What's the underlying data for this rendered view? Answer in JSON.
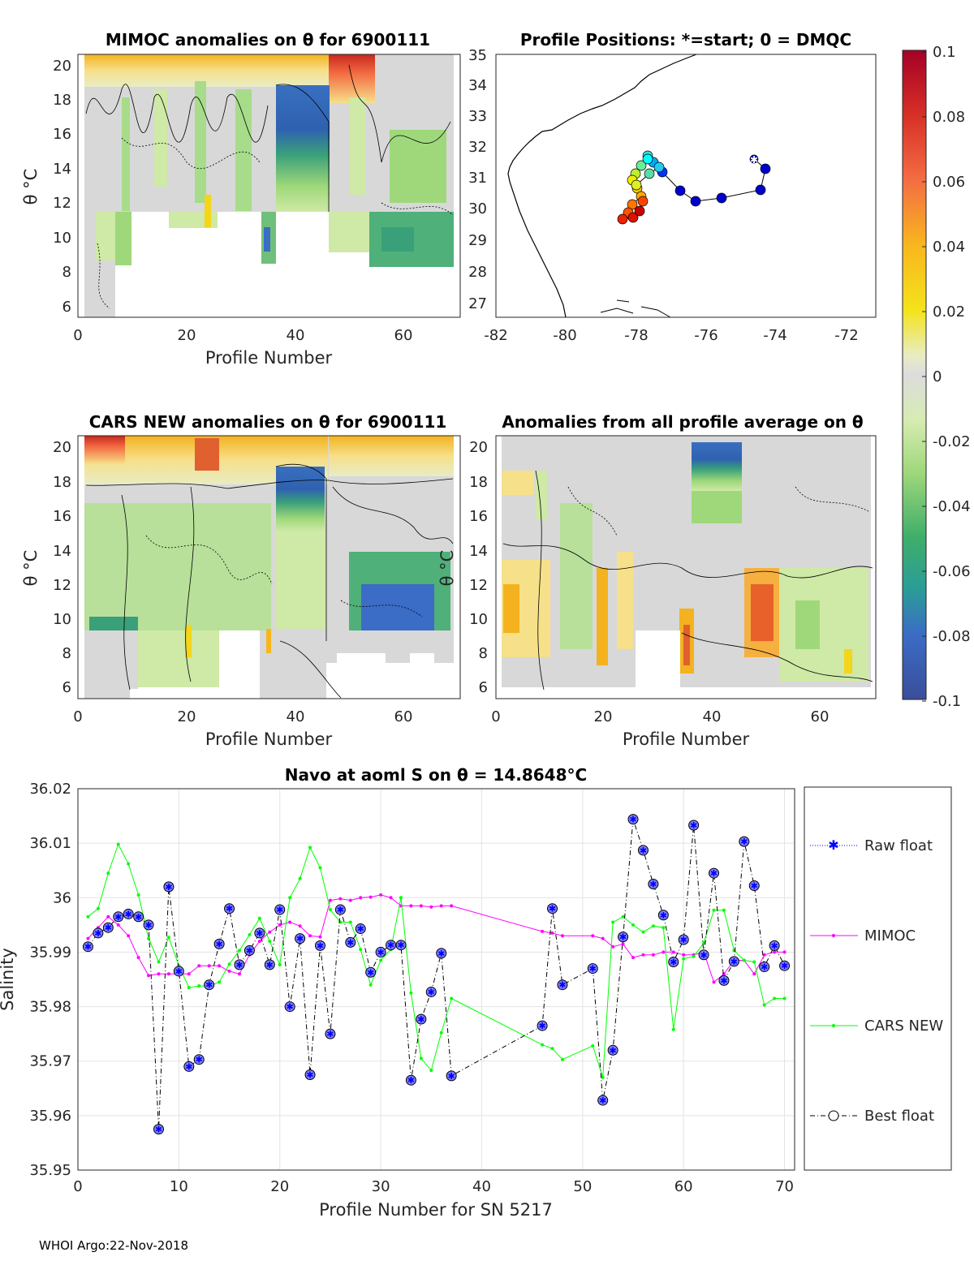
{
  "footer": "WHOI Argo:22-Nov-2018",
  "colors": {
    "raw": "#0000ff",
    "mimoc": "#ff00ff",
    "cars": "#00ff00",
    "best": "#000000",
    "marker_fill": "#8080ff"
  },
  "colorbar": {
    "ticks": [
      "0.1",
      "0.08",
      "0.06",
      "0.04",
      "0.02",
      "0",
      "-0.02",
      "-0.04",
      "-0.06",
      "-0.08",
      "-0.1"
    ],
    "range": [
      -0.1,
      0.1
    ]
  },
  "panels": {
    "mimoc": {
      "title": "MIMOC anomalies on θ  for 6900111",
      "xlabel": "Profile Number",
      "ylabel": "θ °C",
      "xticks": [
        "0",
        "20",
        "40",
        "60"
      ],
      "yticks": [
        "20",
        "18",
        "16",
        "14",
        "12",
        "10",
        "8",
        "6"
      ]
    },
    "map": {
      "title": "Profile Positions: *=start; 0 = DMQC",
      "xticks": [
        "-82",
        "-80",
        "-78",
        "-76",
        "-74",
        "-72"
      ],
      "yticks": [
        "35",
        "34",
        "33",
        "32",
        "31",
        "30",
        "29",
        "28",
        "27"
      ]
    },
    "cars": {
      "title": "CARS NEW anomalies on θ for 6900111",
      "xlabel": "Profile Number",
      "ylabel": "θ °C",
      "xticks": [
        "0",
        "20",
        "40",
        "60"
      ],
      "yticks": [
        "20",
        "18",
        "16",
        "14",
        "12",
        "10",
        "8",
        "6"
      ]
    },
    "avg": {
      "title": "Anomalies from all profile average on θ",
      "xlabel": "Profile Number",
      "ylabel": "θ °C",
      "xticks": [
        "0",
        "20",
        "40",
        "60"
      ],
      "yticks": [
        "20",
        "18",
        "16",
        "14",
        "12",
        "10",
        "8",
        "6"
      ]
    }
  },
  "chart_data": {
    "type": "line",
    "title": "Navo at aoml S on θ = 14.8648°C",
    "xlabel": "Profile Number for SN 5217",
    "ylabel": "Salinity",
    "xlim": [
      0,
      71
    ],
    "ylim": [
      35.95,
      36.02
    ],
    "xticks": [
      "0",
      "10",
      "20",
      "30",
      "40",
      "50",
      "60",
      "70"
    ],
    "yticks": [
      "36.02",
      "36.01",
      "36",
      "35.99",
      "35.98",
      "35.97",
      "35.96",
      "35.95"
    ],
    "legend": [
      "Raw float",
      "MIMOC",
      "CARS NEW",
      "Best float"
    ],
    "series": [
      {
        "name": "Best float",
        "x": [
          1,
          2,
          3,
          4,
          5,
          6,
          7,
          8,
          9,
          10,
          11,
          12,
          13,
          14,
          15,
          16,
          17,
          18,
          19,
          20,
          21,
          22,
          23,
          24,
          25,
          26,
          27,
          28,
          29,
          30,
          31,
          32,
          33,
          34,
          35,
          36,
          37,
          46,
          47,
          48,
          51,
          52,
          53,
          54,
          55,
          56,
          57,
          58,
          59,
          60,
          61,
          62,
          63,
          64,
          65,
          66,
          67,
          68,
          69,
          70
        ],
        "y": [
          35.991,
          35.9935,
          35.9945,
          35.9965,
          35.997,
          35.9965,
          35.995,
          35.9575,
          36.002,
          35.9865,
          35.969,
          35.9703,
          35.984,
          35.9915,
          35.998,
          35.9877,
          35.9903,
          35.9935,
          35.9877,
          35.9978,
          35.98,
          35.9925,
          35.9675,
          35.9912,
          35.975,
          35.9978,
          35.9918,
          35.9943,
          35.9863,
          35.99,
          35.9913,
          35.9913,
          35.9665,
          35.9777,
          35.9827,
          35.9898,
          35.9673,
          35.9765,
          35.998,
          35.984,
          35.987,
          35.9628,
          35.972,
          35.9928,
          36.0144,
          36.0087,
          36.0025,
          35.9968,
          35.9882,
          35.9923,
          36.0133,
          35.9895,
          36.0045,
          35.9848,
          35.9883,
          36.0103,
          36.0022,
          35.9873,
          35.9912,
          35.9875
        ]
      },
      {
        "name": "MIMOC",
        "x": [
          1,
          2,
          3,
          4,
          5,
          6,
          7,
          8,
          9,
          10,
          11,
          12,
          13,
          14,
          15,
          16,
          17,
          18,
          19,
          20,
          21,
          22,
          23,
          24,
          25,
          26,
          27,
          28,
          29,
          30,
          31,
          32,
          33,
          34,
          35,
          36,
          37,
          46,
          47,
          48,
          51,
          52,
          53,
          54,
          55,
          56,
          57,
          58,
          59,
          60,
          61,
          62,
          63,
          64,
          65,
          66,
          67,
          68,
          69,
          70
        ],
        "y": [
          35.9925,
          35.9945,
          35.9965,
          35.995,
          35.993,
          35.989,
          35.9857,
          35.986,
          35.986,
          35.986,
          35.986,
          35.9875,
          35.9875,
          35.9875,
          35.9865,
          35.986,
          35.9895,
          35.992,
          35.9937,
          35.995,
          35.9955,
          35.9948,
          35.993,
          35.9928,
          35.9995,
          35.9998,
          35.9995,
          36.0,
          36.0001,
          36.0005,
          36.0,
          35.9985,
          35.9985,
          35.9985,
          35.9983,
          35.9985,
          35.9985,
          35.9938,
          35.9935,
          35.993,
          35.993,
          35.9925,
          35.991,
          35.9915,
          35.989,
          35.9895,
          35.9895,
          35.99,
          35.99,
          35.9895,
          35.9895,
          35.99,
          35.9845,
          35.986,
          35.9885,
          35.9885,
          35.986,
          35.9895,
          35.99,
          35.99
        ]
      },
      {
        "name": "CARS NEW",
        "x": [
          1,
          2,
          3,
          4,
          5,
          6,
          7,
          8,
          9,
          10,
          11,
          12,
          13,
          14,
          15,
          16,
          17,
          18,
          19,
          20,
          21,
          22,
          23,
          24,
          25,
          26,
          27,
          28,
          29,
          30,
          31,
          32,
          33,
          34,
          35,
          36,
          37,
          46,
          47,
          48,
          51,
          52,
          53,
          54,
          55,
          56,
          57,
          58,
          59,
          60,
          61,
          62,
          63,
          64,
          65,
          66,
          67,
          68,
          69,
          70
        ],
        "y": [
          35.9965,
          35.998,
          36.0045,
          36.0098,
          36.0062,
          36.0005,
          35.9925,
          35.9882,
          35.9927,
          35.9875,
          35.9835,
          35.9838,
          35.9838,
          35.9845,
          35.9878,
          35.9903,
          35.9932,
          35.9962,
          35.992,
          35.9877,
          36.0,
          36.0035,
          36.0092,
          36.0055,
          35.9978,
          35.9955,
          35.9955,
          35.9905,
          35.984,
          35.9885,
          35.9905,
          36.0,
          35.9825,
          35.9705,
          35.9683,
          35.9752,
          35.9815,
          35.973,
          35.9723,
          35.9703,
          35.9728,
          35.967,
          35.9955,
          35.9965,
          35.995,
          35.9937,
          35.9948,
          35.9945,
          35.9758,
          35.9888,
          35.9892,
          35.9917,
          35.9977,
          35.9977,
          35.9903,
          35.9885,
          35.9882,
          35.9803,
          35.9815,
          35.9815
        ]
      }
    ]
  }
}
